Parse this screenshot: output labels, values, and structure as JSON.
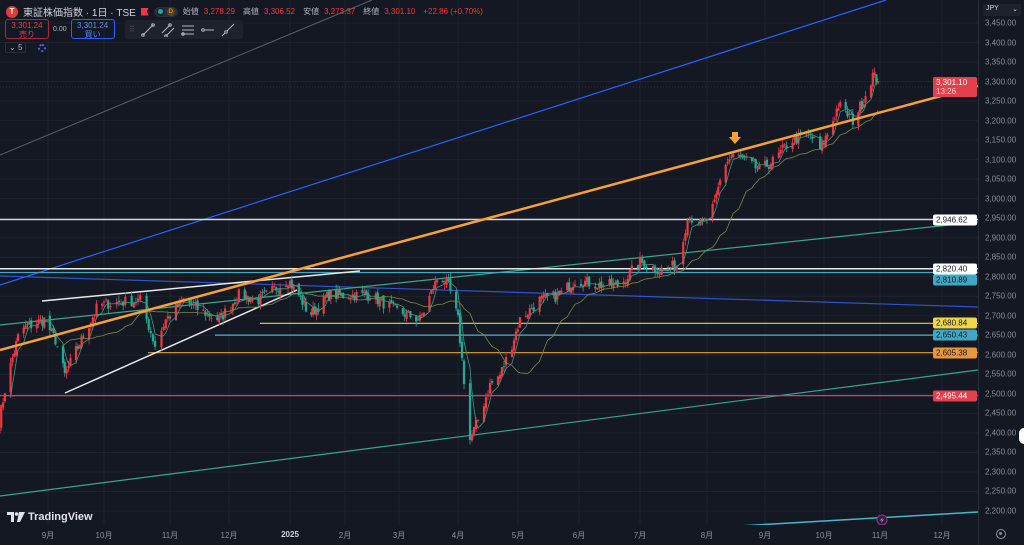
{
  "header": {
    "symbol": "東証株価指数 · 1日 · TSE",
    "status_badge": "D",
    "ohlc": [
      {
        "label": "始値",
        "value": "3,278.29"
      },
      {
        "label": "高値",
        "value": "3,306.52"
      },
      {
        "label": "安値",
        "value": "3,273.37"
      },
      {
        "label": "終値",
        "value": "3,301.10"
      }
    ],
    "change": "+22.86 (+0.70%)"
  },
  "trade": {
    "sell_price": "3,301.24",
    "sell_label": "売り",
    "spread": "0.00",
    "buy_price": "3,301.24",
    "buy_label": "買い"
  },
  "indicators": {
    "count": "5"
  },
  "drawing_toolbar": [
    "trend-line-icon",
    "parallel-channel-icon",
    "fib-retracement-icon",
    "horizontal-ray-icon",
    "extended-line-icon"
  ],
  "price_axis": {
    "currency": "JPY",
    "ticks": [
      "3,450.00",
      "3,400.00",
      "3,350.00",
      "3,300.00",
      "3,250.00",
      "3,200.00",
      "3,150.00",
      "3,100.00",
      "3,050.00",
      "3,000.00",
      "2,950.00",
      "2,900.00",
      "2,850.00",
      "2,800.00",
      "2,750.00",
      "2,700.00",
      "2,650.00",
      "2,600.00",
      "2,550.00",
      "2,500.00",
      "2,450.00",
      "2,400.00",
      "2,350.00",
      "2,300.00",
      "2,250.00",
      "2,200.00"
    ],
    "last_price": {
      "value": "3,301.10",
      "countdown": "13:26",
      "color": "#f23645"
    },
    "level_badges": [
      {
        "value": "2,946.62",
        "price": 2946.62,
        "bg": "#ffffff",
        "fg": "#131722"
      },
      {
        "value": "2,820.40",
        "price": 2820.4,
        "bg": "#ffffff",
        "fg": "#131722"
      },
      {
        "value": "2,810.89",
        "price": 2810.89,
        "bg": "#3fa8c6",
        "fg": "#131722"
      },
      {
        "value": "2,680.84",
        "price": 2680.84,
        "bg": "#f0d64a",
        "fg": "#131722"
      },
      {
        "value": "2,650.43",
        "price": 2650.43,
        "bg": "#3fa8c6",
        "fg": "#131722"
      },
      {
        "value": "2,605.38",
        "price": 2605.38,
        "bg": "#e9973a",
        "fg": "#131722"
      },
      {
        "value": "2,495.44",
        "price": 2495.44,
        "bg": "#e2404c",
        "fg": "#ffffff"
      }
    ]
  },
  "time_axis": {
    "labels": [
      "9月",
      "10月",
      "11月",
      "12月",
      "2025",
      "2月",
      "3月",
      "4月",
      "5月",
      "6月",
      "7月",
      "8月",
      "9月",
      "10月",
      "11月",
      "12月"
    ]
  },
  "colors": {
    "up": "#f23645",
    "down": "#22ab94",
    "background": "#141823",
    "ma_short": "#3d9a80",
    "ma_long": "#7a8a45"
  },
  "chart_data": {
    "type": "candlestick",
    "price_range": [
      2180,
      3470
    ],
    "close_path": [
      [
        "2024-08-06",
        2433
      ],
      [
        "2024-08-10",
        2536
      ],
      [
        "2024-08-17",
        2664
      ],
      [
        "2024-08-30",
        2690
      ],
      [
        "2024-09-05",
        2638
      ],
      [
        "2024-09-10",
        2548
      ],
      [
        "2024-09-15",
        2600
      ],
      [
        "2024-09-28",
        2728
      ],
      [
        "2024-10-18",
        2740
      ],
      [
        "2024-10-25",
        2625
      ],
      [
        "2024-10-30",
        2690
      ],
      [
        "2024-11-08",
        2740
      ],
      [
        "2024-11-16",
        2715
      ],
      [
        "2024-11-26",
        2690
      ],
      [
        "2024-12-06",
        2753
      ],
      [
        "2024-12-16",
        2740
      ],
      [
        "2024-12-31",
        2792
      ],
      [
        "2025-01-06",
        2753
      ],
      [
        "2025-01-12",
        2702
      ],
      [
        "2025-01-23",
        2753
      ],
      [
        "2025-02-14",
        2753
      ],
      [
        "2025-02-27",
        2715
      ],
      [
        "2025-03-12",
        2690
      ],
      [
        "2025-03-22",
        2805
      ],
      [
        "2025-03-27",
        2779
      ],
      [
        "2025-04-01",
        2690
      ],
      [
        "2025-04-04",
        2536
      ],
      [
        "2025-04-07",
        2382
      ],
      [
        "2025-04-11",
        2433
      ],
      [
        "2025-04-17",
        2523
      ],
      [
        "2025-04-22",
        2548
      ],
      [
        "2025-04-27",
        2612
      ],
      [
        "2025-05-02",
        2690
      ],
      [
        "2025-05-12",
        2740
      ],
      [
        "2025-05-22",
        2753
      ],
      [
        "2025-05-30",
        2792
      ],
      [
        "2025-06-11",
        2779
      ],
      [
        "2025-06-21",
        2779
      ],
      [
        "2025-07-01",
        2838
      ],
      [
        "2025-07-10",
        2818
      ],
      [
        "2025-07-19",
        2830
      ],
      [
        "2025-07-23",
        2958
      ],
      [
        "2025-07-30",
        2933
      ],
      [
        "2025-08-05",
        2984
      ],
      [
        "2025-08-10",
        3086
      ],
      [
        "2025-08-15",
        3112
      ],
      [
        "2025-08-21",
        3099
      ],
      [
        "2025-08-29",
        3073
      ],
      [
        "2025-09-06",
        3099
      ],
      [
        "2025-09-14",
        3150
      ],
      [
        "2025-09-24",
        3163
      ],
      [
        "2025-09-29",
        3125
      ],
      [
        "2025-10-04",
        3176
      ],
      [
        "2025-10-09",
        3240
      ],
      [
        "2025-10-17",
        3201
      ],
      [
        "2025-10-23",
        3253
      ],
      [
        "2025-10-28",
        3317
      ],
      [
        "2025-10-31",
        3301.1
      ]
    ]
  }
}
